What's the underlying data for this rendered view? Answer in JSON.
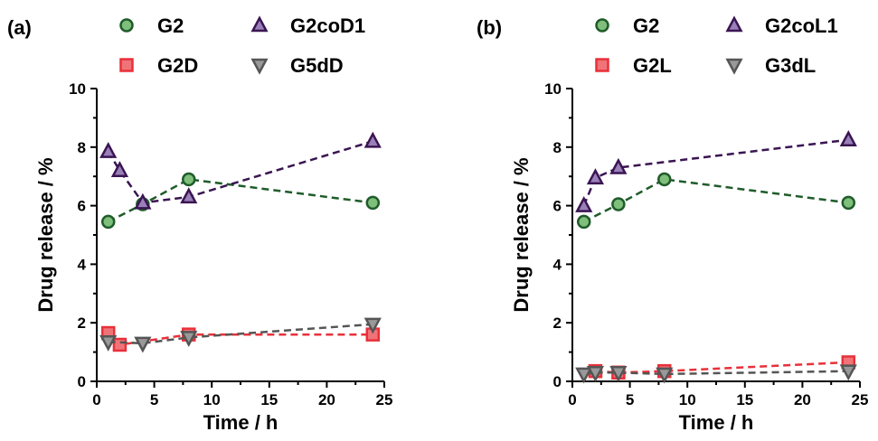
{
  "colors": {
    "G2": "#1f5c2a",
    "G2_fill": "#7fbf7b",
    "tri": "#3a1552",
    "tri_fill": "#9a80b8",
    "sq": "#e8303a",
    "sq_fill": "#f07378",
    "dtri": "#555555",
    "dtri_fill": "#999999"
  },
  "chart_data": [
    {
      "type": "scatter",
      "panel_label": "(a)",
      "xlabel": "Time / h",
      "ylabel": "Drug release / %",
      "xlim": [
        0,
        25
      ],
      "ylim": [
        0,
        10
      ],
      "xticks": [
        "0",
        "5",
        "10",
        "15",
        "20",
        "25"
      ],
      "yticks": [
        "0",
        "2",
        "4",
        "6",
        "8",
        "10"
      ],
      "grid": false,
      "legend_position": "top",
      "series": [
        {
          "name": "G2",
          "marker": "circle",
          "x": [
            1,
            4,
            8,
            24
          ],
          "y": [
            5.45,
            6.05,
            6.9,
            6.1
          ]
        },
        {
          "name": "G2coD1",
          "marker": "triangle-up",
          "x": [
            1,
            2,
            4,
            8,
            24
          ],
          "y": [
            7.85,
            7.2,
            6.1,
            6.3,
            8.2
          ]
        },
        {
          "name": "G2D",
          "marker": "square",
          "x": [
            1,
            2,
            8,
            24
          ],
          "y": [
            1.65,
            1.25,
            1.6,
            1.6
          ]
        },
        {
          "name": "G5dD",
          "marker": "triangle-down",
          "x": [
            1,
            4,
            8,
            24
          ],
          "y": [
            1.35,
            1.3,
            1.5,
            1.95
          ]
        }
      ]
    },
    {
      "type": "scatter",
      "panel_label": "(b)",
      "xlabel": "Time / h",
      "ylabel": "Drug release / %",
      "xlim": [
        0,
        25
      ],
      "ylim": [
        0,
        10
      ],
      "xticks": [
        "0",
        "5",
        "10",
        "15",
        "20",
        "25"
      ],
      "yticks": [
        "0",
        "2",
        "4",
        "6",
        "8",
        "10"
      ],
      "grid": false,
      "legend_position": "top",
      "series": [
        {
          "name": "G2",
          "marker": "circle",
          "x": [
            1,
            4,
            8,
            24
          ],
          "y": [
            5.45,
            6.05,
            6.9,
            6.1
          ]
        },
        {
          "name": "G2coL1",
          "marker": "triangle-up",
          "x": [
            1,
            2,
            4,
            24
          ],
          "y": [
            6.0,
            6.95,
            7.3,
            8.25
          ]
        },
        {
          "name": "G2L",
          "marker": "square",
          "x": [
            2,
            4,
            8,
            24
          ],
          "y": [
            0.35,
            0.3,
            0.35,
            0.65
          ]
        },
        {
          "name": "G3dL",
          "marker": "triangle-down",
          "x": [
            1,
            2,
            4,
            8,
            24
          ],
          "y": [
            0.25,
            0.3,
            0.3,
            0.25,
            0.35
          ]
        }
      ]
    }
  ]
}
